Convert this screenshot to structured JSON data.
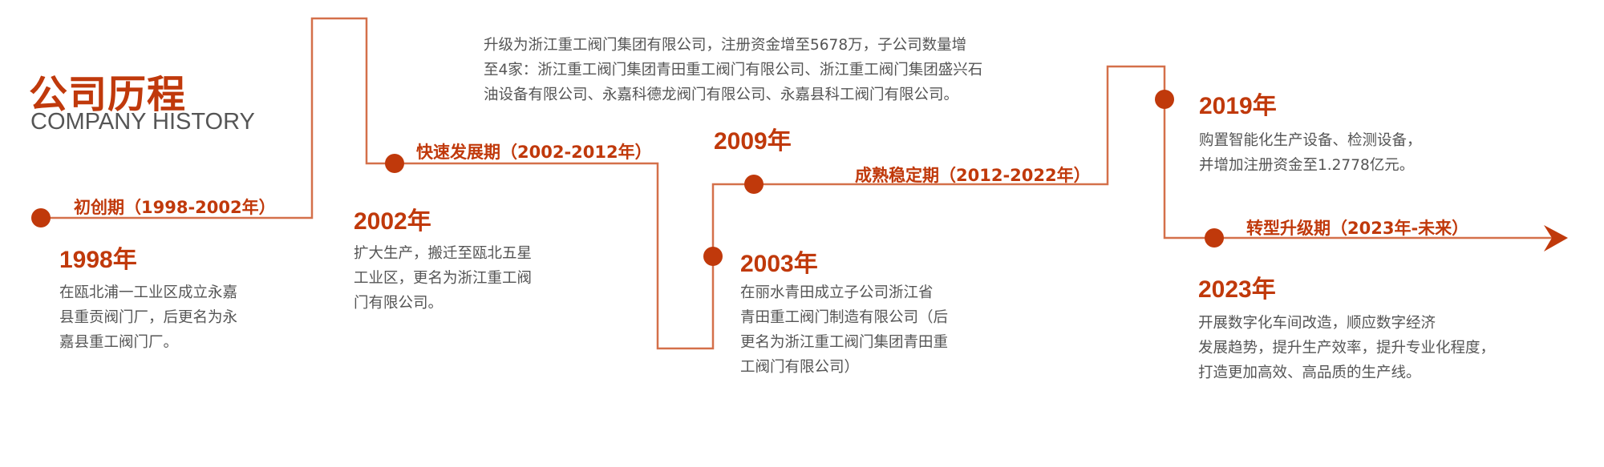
{
  "header": {
    "title": "公司历程",
    "subtitle": "COMPANY HISTORY"
  },
  "colors": {
    "accent": "#c0390b",
    "line": "#d4704a",
    "text": "#555555"
  },
  "periods": [
    {
      "label": "初创期（1998-2002年）"
    },
    {
      "label": "快速发展期（2002-2012年）"
    },
    {
      "label": "成熟稳定期（2012-2022年）"
    },
    {
      "label": "转型升级期（2023年-未来）"
    }
  ],
  "events": [
    {
      "year": "1998年",
      "lines": [
        "在瓯北浦一工业区成立永嘉",
        "县重贡阀门厂，后更名为永",
        "嘉县重工阀门厂。"
      ]
    },
    {
      "year": "2002年",
      "lines": [
        "扩大生产，搬迁至瓯北五星",
        "工业区，更名为浙江重工阀",
        "门有限公司。"
      ]
    },
    {
      "year": "2003年",
      "lines": [
        "在丽水青田成立子公司浙江省",
        "青田重工阀门制造有限公司（后",
        "更名为浙江重工阀门集团青田重",
        "工阀门有限公司）"
      ]
    },
    {
      "year": "2009年",
      "lines": [
        "升级为浙江重工阀门集团有限公司，注册资金增至5678万，子公司数量增",
        "至4家：浙江重工阀门集团青田重工阀门有限公司、浙江重工阀门集团盛兴石",
        "油设备有限公司、永嘉科德龙阀门有限公司、永嘉县科工阀门有限公司。"
      ]
    },
    {
      "year": "2019年",
      "lines": [
        "购置智能化生产设备、检测设备，",
        "并增加注册资金至1.2778亿元。"
      ]
    },
    {
      "year": "2023年",
      "lines": [
        "开展数字化车间改造，顺应数字经济",
        "发展趋势，提升生产效率，提升专业化程度，",
        "打造更加高效、高品质的生产线。"
      ]
    }
  ]
}
